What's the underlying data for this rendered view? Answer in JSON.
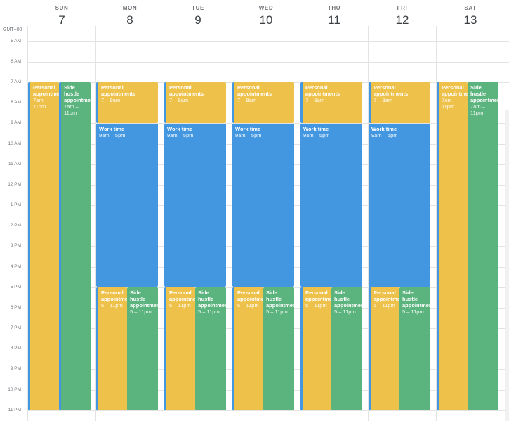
{
  "timezone": "GMT+00",
  "days": [
    {
      "dow": "SUN",
      "num": "7"
    },
    {
      "dow": "MON",
      "num": "8"
    },
    {
      "dow": "TUE",
      "num": "9"
    },
    {
      "dow": "WED",
      "num": "10"
    },
    {
      "dow": "THU",
      "num": "11"
    },
    {
      "dow": "FRI",
      "num": "12"
    },
    {
      "dow": "SAT",
      "num": "13"
    }
  ],
  "hours": [
    "5 AM",
    "6 AM",
    "7 AM",
    "8 AM",
    "9 AM",
    "10 AM",
    "11 AM",
    "12 PM",
    "1 PM",
    "2 PM",
    "3 PM",
    "4 PM",
    "5 PM",
    "6 PM",
    "7 PM",
    "8 PM",
    "9 PM",
    "10 PM",
    "11 PM"
  ],
  "events": {
    "sun_personal": {
      "title": "Personal appointments",
      "time": "7am – 11pm"
    },
    "sun_side": {
      "title": "Side hustle appointments",
      "time": "7am – 11pm"
    },
    "mon_personal_am": {
      "title": "Personal appointments",
      "time": "7 – 9am"
    },
    "mon_work": {
      "title": "Work time",
      "time": "9am – 5pm"
    },
    "mon_personal_pm": {
      "title": "Personal appointments",
      "time": "5 – 11pm"
    },
    "mon_side_pm": {
      "title": "Side hustle appointments",
      "time": "5 – 11pm"
    },
    "tue_personal_am": {
      "title": "Personal appointments",
      "time": "7 – 9am"
    },
    "tue_work": {
      "title": "Work time",
      "time": "9am – 5pm"
    },
    "tue_personal_pm": {
      "title": "Personal appointments",
      "time": "5 – 11pm"
    },
    "tue_side_pm": {
      "title": "Side hustle appointments",
      "time": "5 – 11pm"
    },
    "wed_personal_am": {
      "title": "Personal appointments",
      "time": "7 – 9am"
    },
    "wed_work": {
      "title": "Work time",
      "time": "9am – 5pm"
    },
    "wed_personal_pm": {
      "title": "Personal appointments",
      "time": "5 – 11pm"
    },
    "wed_side_pm": {
      "title": "Side hustle appointments",
      "time": "5 – 11pm"
    },
    "thu_personal_am": {
      "title": "Personal appointments",
      "time": "7 – 9am"
    },
    "thu_work": {
      "title": "Work time",
      "time": "9am – 5pm"
    },
    "thu_personal_pm": {
      "title": "Personal appointments",
      "time": "5 – 11pm"
    },
    "thu_side_pm": {
      "title": "Side hustle appointments",
      "time": "5 – 11pm"
    },
    "fri_personal_am": {
      "title": "Personal appointments",
      "time": "7 – 9am"
    },
    "fri_work": {
      "title": "Work time",
      "time": "9am – 5pm"
    },
    "fri_personal_pm": {
      "title": "Personal appointments",
      "time": "5 – 11pm"
    },
    "fri_side_pm": {
      "title": "Side hustle appointments",
      "time": "5 – 11pm"
    },
    "sat_personal": {
      "title": "Personal appointments",
      "time": "7am – 11pm"
    },
    "sat_side": {
      "title": "Side hustle appointments",
      "time": "7am – 11pm"
    }
  },
  "colors": {
    "personal": "#eec14b",
    "side_hustle": "#5bb37d",
    "work": "#4397e0"
  }
}
